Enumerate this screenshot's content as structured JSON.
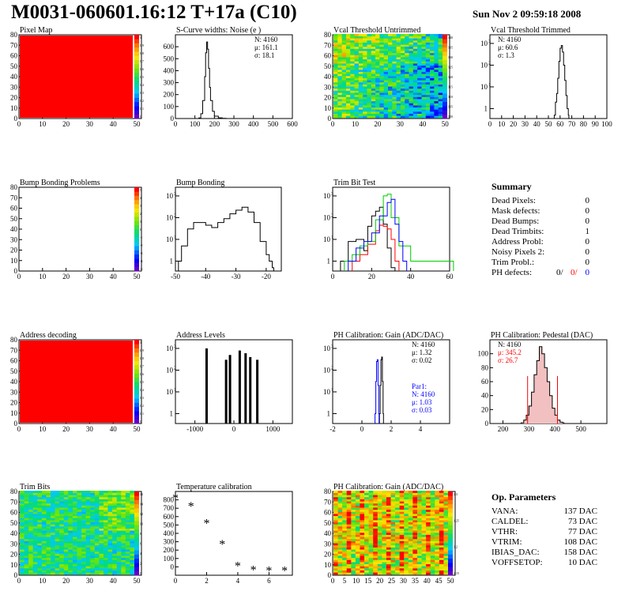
{
  "header": {
    "title": "M0031-060601.16:12 T+17a (C10)",
    "date": "Sun Nov  2 09:59:18 2008"
  },
  "colors": {
    "series_black": "#000000",
    "series_red": "#ff0000",
    "series_green": "#00cc00",
    "series_blue": "#0000ff",
    "map_red": "#ff0000"
  },
  "summary": {
    "heading": "Summary",
    "rows": [
      {
        "label": "Dead Pixels:",
        "value": "0"
      },
      {
        "label": "Mask defects:",
        "value": "0"
      },
      {
        "label": "Dead Bumps:",
        "value": "0"
      },
      {
        "label": "Dead Trimbits:",
        "value": "1"
      },
      {
        "label": "Address Probl:",
        "value": "0"
      },
      {
        "label": "Noisy Pixels 2:",
        "value": "0"
      },
      {
        "label": "Trim Probl.:",
        "value": "0"
      }
    ],
    "ph_label": "PH defects:",
    "ph_values": [
      "0/",
      "0/",
      "0"
    ]
  },
  "op_params": {
    "heading": "Op. Parameters",
    "rows": [
      {
        "label": "VANA:",
        "value": "137 DAC"
      },
      {
        "label": "CALDEL:",
        "value": "73 DAC"
      },
      {
        "label": "VTHR:",
        "value": "77 DAC"
      },
      {
        "label": "VTRIM:",
        "value": "108 DAC"
      },
      {
        "label": "IBIAS_DAC:",
        "value": "158 DAC"
      },
      {
        "label": "VOFFSETOP:",
        "value": "10 DAC"
      }
    ]
  },
  "chart_data": [
    {
      "id": "pixel_map",
      "type": "heatmap",
      "title": "Pixel Map",
      "xlim": [
        0,
        52
      ],
      "ylim": [
        0,
        80
      ],
      "xticks": [
        0,
        10,
        20,
        30,
        40,
        50
      ],
      "yticks": [
        0,
        10,
        20,
        30,
        40,
        50,
        60,
        70,
        80
      ],
      "palette_ticks": [
        "1",
        "0.9",
        "0.8",
        "0.7",
        "0.6",
        "0.5",
        "0.4",
        "0.3",
        "0.2",
        "0.1",
        "0"
      ],
      "pattern": "uniform"
    },
    {
      "id": "scurve",
      "type": "bar",
      "title": "S-Curve widths: Noise (e )",
      "xlim": [
        0,
        600
      ],
      "ylim": [
        0,
        700
      ],
      "xticks": [
        0,
        100,
        200,
        300,
        400,
        500,
        600
      ],
      "yticks": [
        0,
        100,
        200,
        300,
        400,
        500,
        600
      ],
      "stats": [
        "N: 4160",
        "μ: 161.1",
        "σ: 18.1"
      ],
      "series": [
        {
          "x": [
            100,
            120,
            130,
            140,
            150,
            155,
            160,
            165,
            170,
            175,
            180,
            190,
            200,
            220,
            240,
            260
          ],
          "values": [
            0,
            5,
            40,
            150,
            350,
            550,
            640,
            580,
            420,
            260,
            150,
            60,
            20,
            6,
            2,
            0
          ]
        }
      ]
    },
    {
      "id": "vcal_untrimmed",
      "type": "heatmap",
      "title": "Vcal Threshold Untrimmed",
      "xlim": [
        0,
        52
      ],
      "ylim": [
        0,
        80
      ],
      "xticks": [
        0,
        10,
        20,
        30,
        40,
        50
      ],
      "yticks": [
        0,
        10,
        20,
        30,
        40,
        50,
        60,
        70,
        80
      ],
      "palette_ticks": [
        "140",
        "135",
        "130",
        "125",
        "120",
        "115",
        "110",
        "105",
        "100"
      ],
      "pattern": "untrimmed"
    },
    {
      "id": "vcal_trimmed",
      "type": "bar",
      "title": "Vcal Threshold Trimmed",
      "xlim": [
        0,
        100
      ],
      "log": true,
      "xticks": [
        0,
        10,
        20,
        30,
        40,
        50,
        60,
        70,
        80,
        90,
        100
      ],
      "stats": [
        "N: 4160",
        "μ: 60.6",
        "σ:  1.3"
      ],
      "series": [
        {
          "x": [
            55,
            56,
            57,
            58,
            59,
            60,
            61,
            62,
            63,
            64,
            65,
            66,
            67
          ],
          "values": [
            0.5,
            2,
            5,
            25,
            150,
            600,
            800,
            400,
            100,
            20,
            4,
            1,
            0.5
          ]
        }
      ]
    },
    {
      "id": "bump_problems",
      "type": "heatmap",
      "title": "Bump Bonding Problems",
      "xlim": [
        0,
        52
      ],
      "ylim": [
        0,
        80
      ],
      "xticks": [
        0,
        10,
        20,
        30,
        40,
        50
      ],
      "yticks": [
        0,
        10,
        20,
        30,
        40,
        50,
        60,
        70,
        80
      ],
      "palette_ticks": [
        "5",
        "4",
        "3",
        "2",
        "1",
        "0",
        "-1",
        "-2",
        "-3",
        "-4",
        "-5"
      ],
      "pattern": "empty"
    },
    {
      "id": "bump_bonding",
      "type": "bar",
      "title": "Bump Bonding",
      "xlim": [
        -50,
        -15
      ],
      "log": true,
      "xticks": [
        -50,
        -40,
        -30,
        -20
      ],
      "series": [
        {
          "x": [
            -49,
            -48,
            -46,
            -44,
            -42,
            -40,
            -38,
            -36,
            -34,
            -32,
            -30,
            -28,
            -26,
            -24,
            -22,
            -20,
            -19,
            -18
          ],
          "values": [
            1,
            5,
            30,
            60,
            60,
            45,
            35,
            60,
            90,
            150,
            220,
            300,
            180,
            60,
            8,
            2,
            1,
            0.5
          ]
        }
      ]
    },
    {
      "id": "trim_bit_test",
      "type": "line",
      "title": "Trim Bit Test",
      "xlim": [
        0,
        60
      ],
      "log": true,
      "xticks": [
        0,
        20,
        40,
        60
      ],
      "series": [
        {
          "color": "#000000",
          "x": [
            4,
            8,
            12,
            16,
            18,
            20,
            22,
            24,
            26,
            28,
            30
          ],
          "values": [
            1,
            8,
            10,
            3,
            40,
            120,
            200,
            300,
            50,
            4,
            0.5
          ]
        },
        {
          "color": "#ff0000",
          "x": [
            10,
            14,
            18,
            22,
            24,
            26,
            28,
            30,
            32
          ],
          "values": [
            1,
            2,
            6,
            25,
            45,
            40,
            30,
            10,
            1
          ]
        },
        {
          "color": "#00cc00",
          "x": [
            6,
            10,
            14,
            18,
            22,
            26,
            28,
            30,
            34,
            40,
            60
          ],
          "values": [
            1,
            2,
            5,
            8,
            80,
            1000,
            1200,
            100,
            5,
            1,
            1
          ]
        },
        {
          "color": "#0000ff",
          "x": [
            8,
            12,
            16,
            20,
            24,
            28,
            30,
            32,
            34,
            36
          ],
          "values": [
            1,
            4,
            8,
            20,
            120,
            500,
            700,
            50,
            8,
            1
          ]
        }
      ]
    },
    {
      "id": "address_decoding",
      "type": "heatmap",
      "title": "Address decoding",
      "xlim": [
        0,
        52
      ],
      "ylim": [
        0,
        80
      ],
      "xticks": [
        0,
        10,
        20,
        30,
        40,
        50
      ],
      "yticks": [
        0,
        10,
        20,
        30,
        40,
        50,
        60,
        70,
        80
      ],
      "palette_ticks": [
        "1",
        "0.9",
        "0.8",
        "0.7",
        "0.6",
        "0.5",
        "0.4",
        "0.3",
        "0.2",
        "0.1",
        "0"
      ],
      "pattern": "uniform"
    },
    {
      "id": "address_levels",
      "type": "bar",
      "title": "Address Levels",
      "xlim": [
        -1500,
        1500
      ],
      "log": true,
      "xticks": [
        -1000,
        0,
        1000
      ],
      "series": [
        {
          "x": [
            -700,
            -200,
            -100,
            150,
            300,
            420,
            600
          ],
          "values": [
            1000,
            300,
            500,
            800,
            600,
            400,
            300
          ]
        }
      ]
    },
    {
      "id": "ph_gain_hist",
      "type": "bar",
      "title": "PH Calibration: Gain (ADC/DAC)",
      "xlim": [
        -2,
        6
      ],
      "log": true,
      "xticks": [
        -2,
        0,
        2,
        4
      ],
      "stats": [
        "N: 4160",
        "μ: 1.32",
        "σ: 0.02"
      ],
      "stats2": [
        "Par1:",
        "N: 4160",
        "μ: 1.03",
        "σ: 0.03"
      ],
      "series": [
        {
          "color": "#000000",
          "x": [
            1.2,
            1.25,
            1.3,
            1.35,
            1.4,
            1.45
          ],
          "values": [
            1,
            20,
            300,
            400,
            30,
            1
          ]
        },
        {
          "color": "#0000ff",
          "x": [
            0.9,
            0.95,
            1.0,
            1.05,
            1.1,
            1.15
          ],
          "values": [
            1,
            30,
            250,
            300,
            20,
            1
          ]
        }
      ]
    },
    {
      "id": "ph_pedestal",
      "type": "bar",
      "title": "PH Calibration: Pedestal (DAC)",
      "xlim": [
        150,
        600
      ],
      "ylim": [
        0,
        120
      ],
      "xticks": [
        200,
        300,
        400,
        500
      ],
      "yticks": [
        0,
        20,
        40,
        60,
        80,
        100
      ],
      "stats": [
        "N: 4160",
        "μ: 345.2",
        "σ: 26.7"
      ],
      "markers": [
        295,
        410
      ],
      "series": [
        {
          "x": [
            270,
            280,
            290,
            300,
            310,
            320,
            330,
            340,
            350,
            360,
            370,
            380,
            390,
            400,
            410,
            420,
            430
          ],
          "values": [
            1,
            5,
            12,
            25,
            45,
            70,
            90,
            110,
            100,
            80,
            60,
            40,
            22,
            12,
            5,
            2,
            1
          ]
        }
      ]
    },
    {
      "id": "trim_bits",
      "type": "heatmap",
      "title": "Trim Bits",
      "xlim": [
        0,
        52
      ],
      "ylim": [
        0,
        80
      ],
      "xticks": [
        0,
        10,
        20,
        30,
        40,
        50
      ],
      "yticks": [
        0,
        10,
        20,
        30,
        40,
        50,
        60,
        70,
        80
      ],
      "palette_ticks": [
        "16",
        "14",
        "12",
        "10",
        "8",
        "6",
        "4",
        "2",
        "0"
      ],
      "pattern": "trimbits"
    },
    {
      "id": "temperature",
      "type": "scatter",
      "title": "Temperature calibration",
      "xlim": [
        0,
        7.5
      ],
      "ylim": [
        -100,
        900
      ],
      "xticks": [
        0,
        2,
        4,
        6
      ],
      "yticks": [
        0,
        100,
        200,
        300,
        400,
        500,
        600,
        700,
        800
      ],
      "series": [
        {
          "x": [
            0,
            1,
            2,
            3,
            4,
            5,
            6,
            7
          ],
          "values": [
            820,
            720,
            520,
            270,
            10,
            -40,
            -50,
            -50
          ]
        }
      ]
    },
    {
      "id": "ph_gain_map",
      "type": "heatmap",
      "title": "PH Calibration: Gain (ADC/DAC)",
      "xlim": [
        0,
        52
      ],
      "ylim": [
        0,
        80
      ],
      "xticks": [
        0,
        5,
        10,
        15,
        20,
        25,
        30,
        35,
        40,
        45,
        50
      ],
      "yticks": [
        0,
        10,
        20,
        30,
        40,
        50,
        60,
        70,
        80
      ],
      "palette_ticks": [
        "1.3",
        "1.25",
        "1.2",
        "1.15"
      ],
      "pattern": "gain"
    }
  ]
}
